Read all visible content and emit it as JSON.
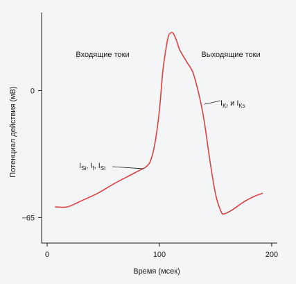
{
  "chart_data": {
    "type": "line",
    "xlabel": "Время (мсек)",
    "ylabel": "Потенциал действия (мВ)",
    "x_ticks": [
      {
        "value": 0,
        "label": "0"
      },
      {
        "value": 100,
        "label": "100"
      },
      {
        "value": 200,
        "label": "200"
      }
    ],
    "y_ticks": [
      {
        "value": 0,
        "label": "0"
      },
      {
        "value": -65,
        "label": "−65"
      }
    ],
    "xlim": [
      -5,
      205
    ],
    "ylim": [
      -78,
      40
    ],
    "grid": false,
    "line_color": "#d9423f",
    "series": [
      {
        "x": [
          7,
          18,
          30,
          45,
          60,
          75,
          85,
          88,
          92,
          96,
          100,
          103,
          106,
          108,
          110,
          112,
          115,
          118,
          124,
          130,
          136,
          140,
          145,
          150,
          155,
          158,
          165,
          175,
          185,
          192
        ],
        "y": [
          -59.5,
          -59.5,
          -56.5,
          -52.5,
          -47.5,
          -43,
          -40,
          -39,
          -36,
          -27,
          -10,
          10,
          22,
          28,
          29.5,
          29.5,
          26,
          21,
          15,
          9,
          -4,
          -16,
          -36,
          -53,
          -62,
          -63,
          -61,
          -57,
          -54,
          -52.5
        ]
      }
    ],
    "annotations": {
      "incoming": "Входящие токи",
      "outgoing": "Выходящие токи",
      "i_out": {
        "a": "I",
        "a_sub": "Kr",
        "mid": " и ",
        "b": "I",
        "b_sub": "Ks",
        "x": 140,
        "y": -7
      },
      "i_in": {
        "a": "I",
        "a_sub": "Si",
        "sep1": ", ",
        "b": "I",
        "b_sub": "f",
        "sep2": ", ",
        "c": "I",
        "c_sub": "St",
        "x": 86,
        "y": -40
      }
    }
  }
}
